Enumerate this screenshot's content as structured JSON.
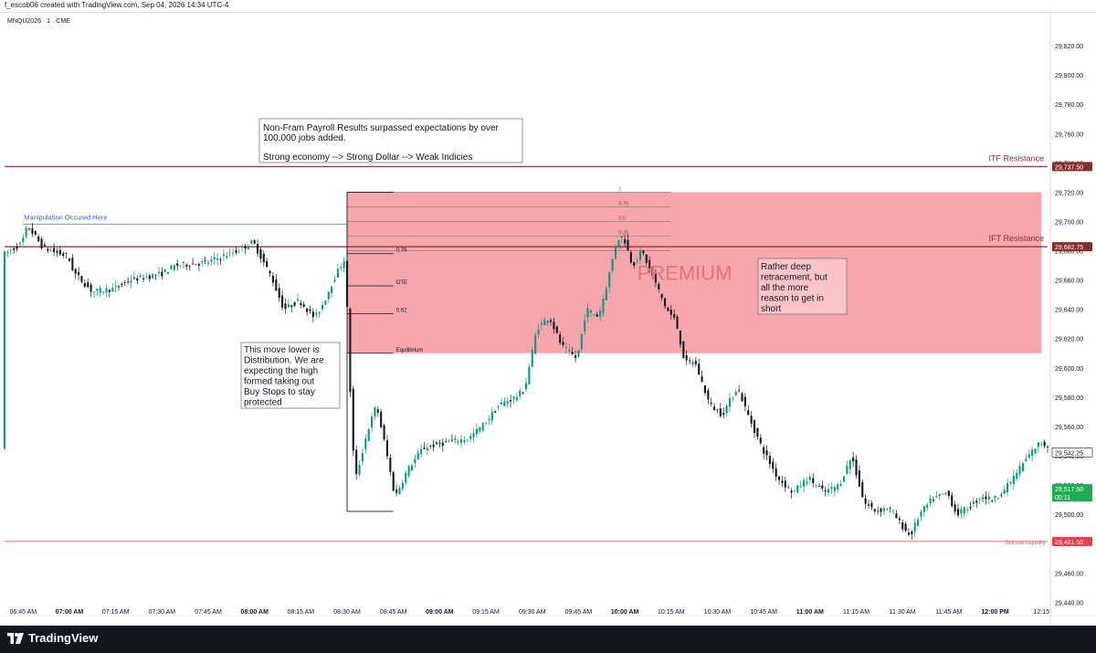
{
  "header": {
    "credit": "f_escob06 created with TradingView.com, Sep 04, 2026 14:34 UTC-4",
    "symbol": "MNQU2026 · 1 · CME"
  },
  "footer": {
    "brand": "TradingView",
    "logo_icon": "tradingview-logo-icon"
  },
  "colors": {
    "up": "#089981",
    "down": "#131722",
    "premium_zone": "#f7a7ab",
    "resistance_line": "#8b2d2d",
    "sellside_line": "#e0606a",
    "manipulation_line": "#2962ff",
    "last_price": "#22ab55"
  },
  "chart_data": {
    "type": "candlestick",
    "timeframe": "1 minute",
    "x_ticks": [
      "06:45 AM",
      "07:00 AM",
      "07:15 AM",
      "07:30 AM",
      "07:45 AM",
      "08:00 AM",
      "08:15 AM",
      "08:30 AM",
      "08:45 AM",
      "09:00 AM",
      "09:15 AM",
      "09:30 AM",
      "09:45 AM",
      "10:00 AM",
      "10:15 AM",
      "10:30 AM",
      "10:45 AM",
      "11:00 AM",
      "11:15 AM",
      "11:30 AM",
      "11:45 AM",
      "12:00 PM",
      "12:15"
    ],
    "y_ticks": [
      "29,820.00",
      "29,800.00",
      "29,780.00",
      "29,760.00",
      "29,740.00",
      "29,720.00",
      "29,700.00",
      "29,680.00",
      "29,660.00",
      "29,640.00",
      "29,620.00",
      "29,600.00",
      "29,580.00",
      "29,560.00",
      "29,540.00",
      "29,520.00",
      "29,500.00",
      "29,480.00",
      "29,460.00",
      "29,440.00"
    ],
    "y_tick_values": [
      29820,
      29800,
      29780,
      29760,
      29740,
      29720,
      29700,
      29680,
      29660,
      29640,
      29620,
      29600,
      29580,
      29560,
      29540,
      29520,
      29500,
      29480,
      29460,
      29440
    ],
    "ylim": [
      29429,
      29835
    ],
    "x_start": "06:39 AM",
    "x_end": "12:17 PM",
    "price_path": [
      [
        "06:39",
        29677
      ],
      [
        "06:45",
        29685
      ],
      [
        "06:47",
        29697
      ],
      [
        "06:52",
        29682
      ],
      [
        "07:00",
        29676
      ],
      [
        "07:02",
        29665
      ],
      [
        "07:08",
        29652
      ],
      [
        "07:15",
        29654
      ],
      [
        "07:20",
        29660
      ],
      [
        "07:30",
        29664
      ],
      [
        "07:35",
        29670
      ],
      [
        "07:45",
        29672
      ],
      [
        "07:55",
        29680
      ],
      [
        "08:00",
        29686
      ],
      [
        "08:03",
        29674
      ],
      [
        "08:06",
        29662
      ],
      [
        "08:10",
        29640
      ],
      [
        "08:15",
        29646
      ],
      [
        "08:20",
        29634
      ],
      [
        "08:23",
        29645
      ],
      [
        "08:26",
        29660
      ],
      [
        "08:30",
        29676
      ],
      [
        "08:31",
        29605
      ],
      [
        "08:33",
        29522
      ],
      [
        "08:37",
        29556
      ],
      [
        "08:40",
        29575
      ],
      [
        "08:43",
        29545
      ],
      [
        "08:46",
        29512
      ],
      [
        "08:50",
        29530
      ],
      [
        "08:55",
        29545
      ],
      [
        "09:00",
        29548
      ],
      [
        "09:10",
        29552
      ],
      [
        "09:15",
        29562
      ],
      [
        "09:20",
        29575
      ],
      [
        "09:25",
        29580
      ],
      [
        "09:28",
        29585
      ],
      [
        "09:32",
        29627
      ],
      [
        "09:36",
        29635
      ],
      [
        "09:40",
        29615
      ],
      [
        "09:45",
        29606
      ],
      [
        "09:48",
        29640
      ],
      [
        "09:52",
        29635
      ],
      [
        "09:55",
        29660
      ],
      [
        "09:58",
        29688
      ],
      [
        "10:00",
        29690
      ],
      [
        "10:03",
        29670
      ],
      [
        "10:06",
        29680
      ],
      [
        "10:10",
        29660
      ],
      [
        "10:14",
        29640
      ],
      [
        "10:17",
        29632
      ],
      [
        "10:20",
        29603
      ],
      [
        "10:23",
        29605
      ],
      [
        "10:28",
        29575
      ],
      [
        "10:32",
        29568
      ],
      [
        "10:37",
        29587
      ],
      [
        "10:40",
        29570
      ],
      [
        "10:45",
        29545
      ],
      [
        "10:50",
        29525
      ],
      [
        "10:55",
        29515
      ],
      [
        "11:00",
        29525
      ],
      [
        "11:05",
        29515
      ],
      [
        "11:10",
        29520
      ],
      [
        "11:14",
        29540
      ],
      [
        "11:18",
        29508
      ],
      [
        "11:22",
        29502
      ],
      [
        "11:26",
        29505
      ],
      [
        "11:30",
        29493
      ],
      [
        "11:33",
        29485
      ],
      [
        "11:36",
        29500
      ],
      [
        "11:40",
        29510
      ],
      [
        "11:45",
        29515
      ],
      [
        "11:48",
        29500
      ],
      [
        "11:52",
        29505
      ],
      [
        "11:56",
        29512
      ],
      [
        "12:00",
        29510
      ],
      [
        "12:04",
        29518
      ],
      [
        "12:08",
        29530
      ],
      [
        "12:12",
        29542
      ],
      [
        "12:15",
        29549
      ],
      [
        "12:17",
        29547
      ]
    ]
  },
  "levels": {
    "itf": {
      "label": "ITF Resistance",
      "value": 29737.5,
      "tag": "29,737.50"
    },
    "ift": {
      "label": "IFT Resistance",
      "value": 29682.75,
      "tag": "29,682.75"
    },
    "sellside": {
      "label": "Sellside Liquidity",
      "value": 29481.5,
      "tag": "29,481.50"
    },
    "current": {
      "value": 29542.25,
      "tag": "29,542.25"
    },
    "last": {
      "value": 29517.5,
      "tag": "29,517.50",
      "countdown": "00:11"
    }
  },
  "annotations": {
    "manipulation": "Manipulation Occured Here",
    "nfp_line1": "Non-Fram Payroll Results surpassed expectations by over",
    "nfp_line2": "100,000 jobs added.",
    "nfp_line3": "Strong economy --> Strong Dollar --> Weak Indicies",
    "distribution": [
      "This move lower is",
      "Distribution. We are",
      "expecting the high",
      "formed taking out",
      "Buy Stops to stay",
      "protected"
    ],
    "retracement": [
      "Rather deep",
      "retracement, but",
      "all the more",
      "reason to get in",
      "short"
    ],
    "premium": "PREMIUM"
  },
  "fib_right": [
    {
      "label": "1",
      "value": 29720
    },
    {
      "label": "0.75",
      "value": 29710
    },
    {
      "label": "0.5",
      "value": 29700
    },
    {
      "label": "0.25",
      "value": 29690
    },
    {
      "label": "0",
      "value": 29680
    }
  ],
  "fib_left": [
    {
      "label": "0.79",
      "value": 29678
    },
    {
      "label": "OTE",
      "value": 29656
    },
    {
      "label": "0.62",
      "value": 29637
    },
    {
      "label": "Equilibrium",
      "value": 29610
    }
  ],
  "fib_range": {
    "high": 29720,
    "low": 29502
  },
  "premium_zone": {
    "top": 29720,
    "bottom": 29610,
    "start": "08:30",
    "end": "12:15"
  }
}
